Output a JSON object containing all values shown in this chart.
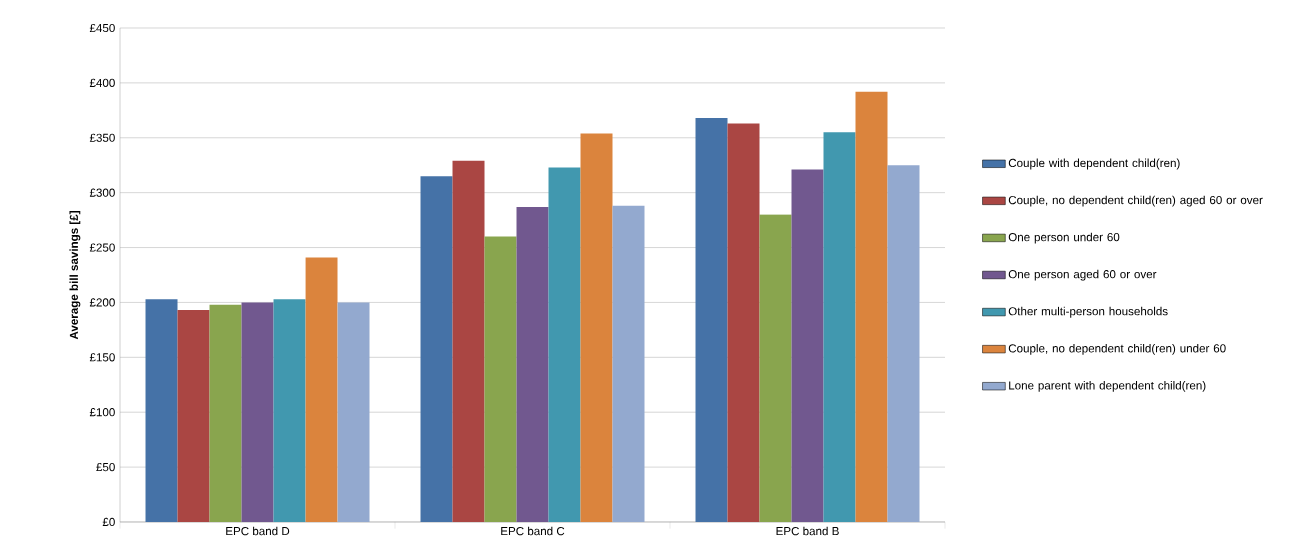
{
  "chart_data": {
    "type": "bar",
    "ylabel": "Average bill savings [£]",
    "categories": [
      "EPC band D",
      "EPC band C",
      "EPC band B"
    ],
    "series": [
      {
        "name": "Couple with dependent child(ren)",
        "color": "#4572a7",
        "values": [
          203,
          315,
          368
        ]
      },
      {
        "name": "Couple, no dependent child(ren) aged 60 or over",
        "color": "#aa4643",
        "values": [
          193,
          329,
          363
        ]
      },
      {
        "name": "One person under 60",
        "color": "#89a54e",
        "values": [
          198,
          260,
          280
        ]
      },
      {
        "name": "One person aged 60 or over",
        "color": "#71588f",
        "values": [
          200,
          287,
          321
        ]
      },
      {
        "name": "Other multi-person households",
        "color": "#4198af",
        "values": [
          203,
          323,
          355
        ]
      },
      {
        "name": "Couple, no dependent child(ren) under 60",
        "color": "#db843d",
        "values": [
          241,
          354,
          392
        ]
      },
      {
        "name": "Lone parent with dependent child(ren)",
        "color": "#93a9cf",
        "values": [
          200,
          288,
          325
        ]
      }
    ],
    "ylim": [
      0,
      450
    ],
    "yticks": [
      {
        "value": 0,
        "label": "£0"
      },
      {
        "value": 50,
        "label": "£50"
      },
      {
        "value": 100,
        "label": "£100"
      },
      {
        "value": 150,
        "label": "£150"
      },
      {
        "value": 200,
        "label": "£200"
      },
      {
        "value": 250,
        "label": "£250"
      },
      {
        "value": 300,
        "label": "£300"
      },
      {
        "value": 350,
        "label": "£350"
      },
      {
        "value": 400,
        "label": "£400"
      },
      {
        "value": 450,
        "label": "£450"
      }
    ],
    "grid": "y",
    "legend": "right"
  }
}
